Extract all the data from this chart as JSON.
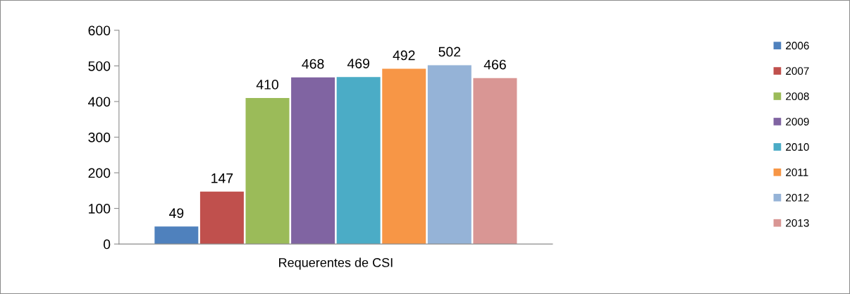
{
  "chart_data": {
    "type": "bar",
    "categories": [
      "Requerentes de CSI"
    ],
    "series": [
      {
        "name": "2006",
        "color": "#4f81bd",
        "values": [
          49
        ]
      },
      {
        "name": "2007",
        "color": "#c0504d",
        "values": [
          147
        ]
      },
      {
        "name": "2008",
        "color": "#9bbb59",
        "values": [
          410
        ]
      },
      {
        "name": "2009",
        "color": "#8064a2",
        "values": [
          468
        ]
      },
      {
        "name": "2010",
        "color": "#4bacc6",
        "values": [
          469
        ]
      },
      {
        "name": "2011",
        "color": "#f79646",
        "values": [
          492
        ]
      },
      {
        "name": "2012",
        "color": "#95b3d7",
        "values": [
          502
        ]
      },
      {
        "name": "2013",
        "color": "#d99694",
        "values": [
          466
        ]
      }
    ],
    "ylim": [
      0,
      600
    ],
    "yticks": [
      0,
      100,
      200,
      300,
      400,
      500,
      600
    ],
    "data_labels": true,
    "legend": "right",
    "grid": false
  }
}
